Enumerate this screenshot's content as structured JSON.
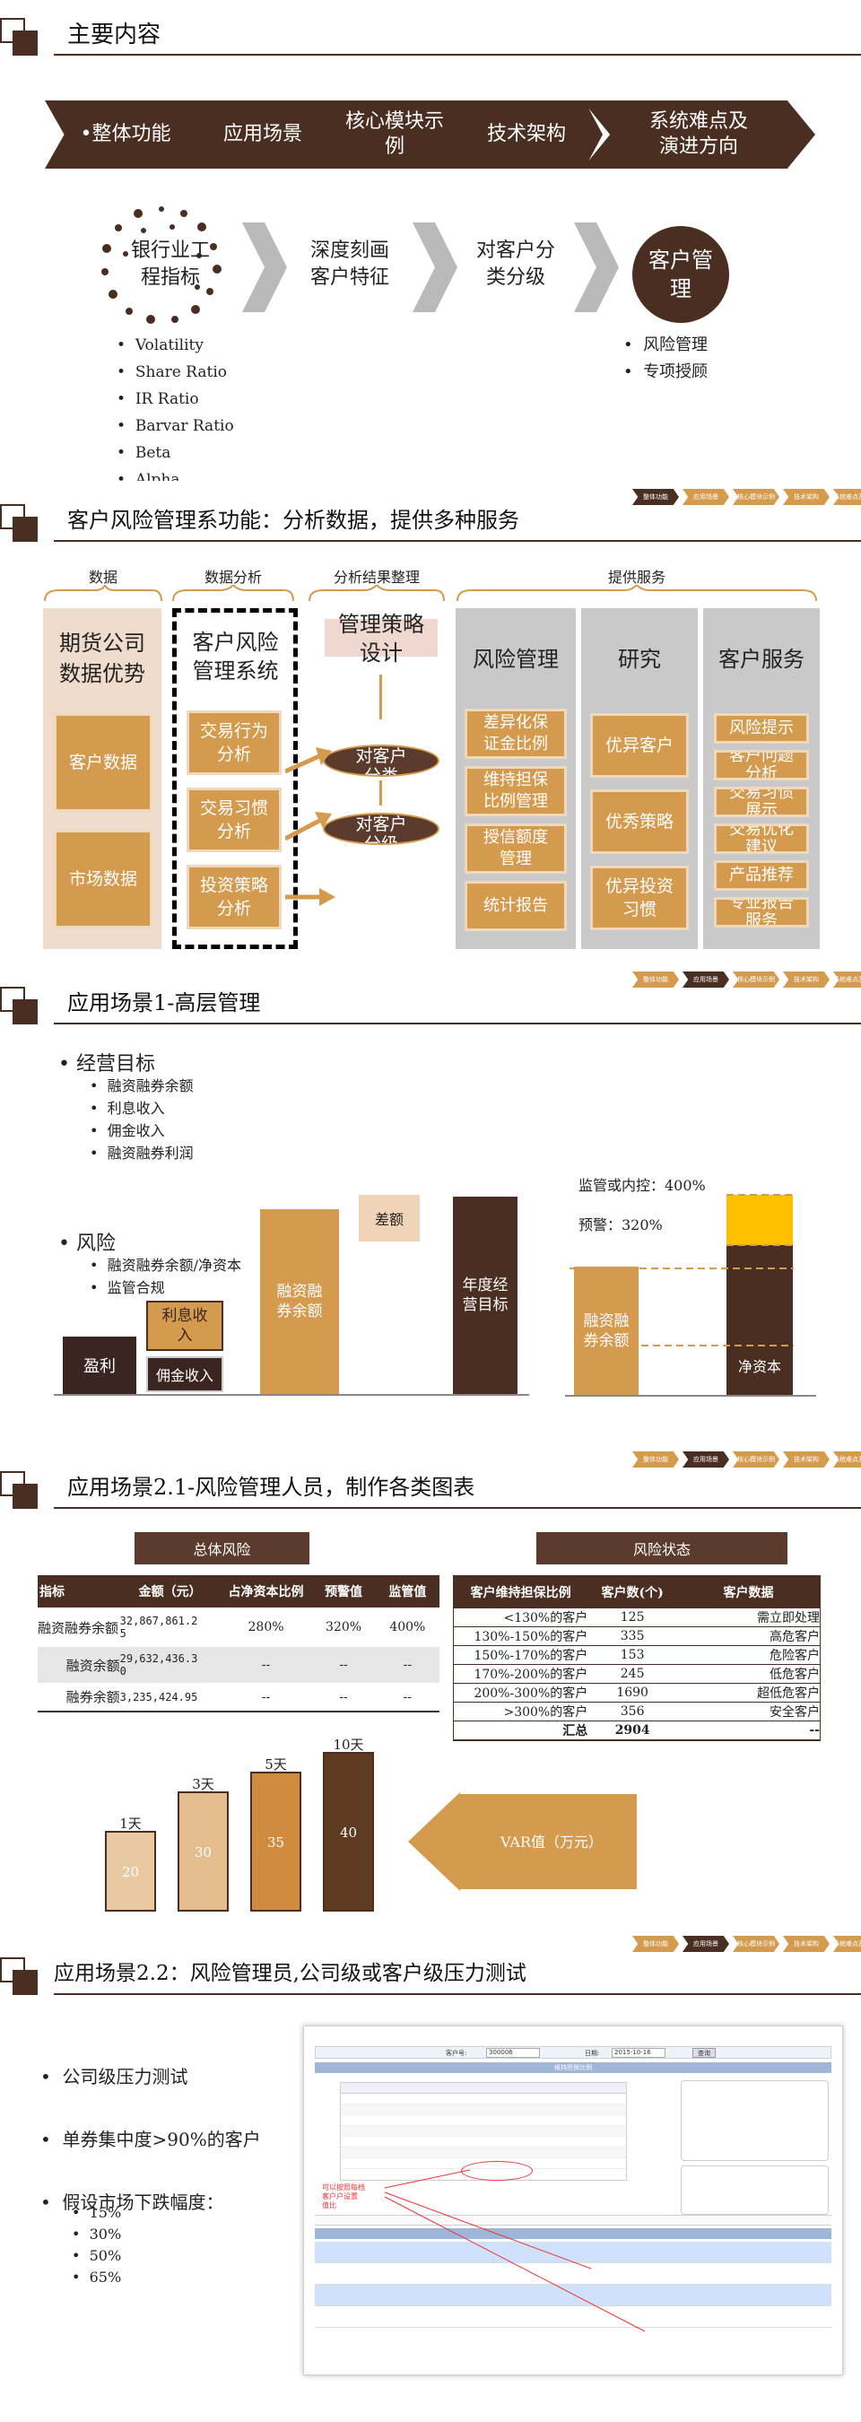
{
  "section1": {
    "title": "主要内容",
    "chevrons": [
      "•整体功能",
      "应用场景",
      "核心模块示\n例",
      "技术架构",
      "系统难点及\n演进方向"
    ],
    "flow": [
      "银行业工\n程指标",
      "深度刻画\n客户特征",
      "对客户分\n类分级",
      "客户管\n理"
    ],
    "left_bullets": [
      "Volatility",
      "Share Ratio",
      "IR Ratio",
      "Barvar Ratio",
      "Beta",
      "Alpha"
    ],
    "right_bullets": [
      "风险管理",
      "专项授顾"
    ]
  },
  "nav": [
    "整体功能",
    "应用场景",
    "核心模块示例",
    "技术架构",
    "系统难点及演进方向"
  ],
  "section2": {
    "title": "客户风险管理系功能：分析数据，提供多种服务",
    "headers": [
      "数据",
      "数据分析",
      "分析结果整理",
      "提供服务"
    ],
    "col1_title": "期货公司\n数据优势",
    "col1_items": [
      "客户数据",
      "市场数据"
    ],
    "col2_title": "客户风险\n管理系统",
    "col2_items": [
      "交易行为\n分析",
      "交易习惯\n分析",
      "投资策略\n分析"
    ],
    "col3_title": "管理策略\n设计",
    "col3_items": [
      "对客户\n分类",
      "对客户\n分级"
    ],
    "svc_risk_title": "风险管理",
    "svc_risk": [
      "差异化保\n证金比例",
      "维持担保\n比例管理",
      "授信额度\n管理",
      "统计报告"
    ],
    "svc_research_title": "研究",
    "svc_research": [
      "优异客户",
      "优秀策略",
      "优异投资\n习惯"
    ],
    "svc_cs_title": "客户服务",
    "svc_cs": [
      "风险提示",
      "客户问题\n分析",
      "交易习惯\n展示",
      "交易优化\n建议",
      "产品推荐",
      "专业报告\n服务"
    ]
  },
  "section3": {
    "title": "应用场景1-高层管理",
    "goal": "经营目标",
    "goal_items": [
      "融资融券余额",
      "利息收入",
      "佣金收入",
      "融资融券利润"
    ],
    "risk": "风险",
    "risk_items": [
      "融资融券余额/净资本",
      "监管合规"
    ],
    "bars": {
      "profit": "盈利",
      "interest": "利息收\n入",
      "commission": "佣金收入",
      "balance": "融资融\n券余额",
      "gap": "差额",
      "target": "年度经\n营目标"
    },
    "reg_label": "监管或内控：400%",
    "warn_label": "预警：320%",
    "right_bal": "融资融\n券余额",
    "net_cap": "净资本"
  },
  "section4": {
    "title": "应用场景2.1-风险管理人员，制作各类图表",
    "overall": "总体风险",
    "status": "风险状态",
    "t1_headers": [
      "指标",
      "金额（元）",
      "占净资本比例",
      "预警值",
      "监管值"
    ],
    "t1_rows": [
      [
        "融资融券余额",
        "32,867,861.2\n5",
        "280%",
        "320%",
        "400%"
      ],
      [
        "融资余额",
        "29,632,436.3\n0",
        "--",
        "--",
        "--"
      ],
      [
        "融券余额",
        "3,235,424.95",
        "--",
        "--",
        "--"
      ]
    ],
    "t2_headers": [
      "客户维持担保比例",
      "客户数(个)",
      "客户数据"
    ],
    "t2_rows": [
      [
        "<130%的客户",
        "125",
        "需立即处理"
      ],
      [
        "130%-150%的客户",
        "335",
        "高危客户"
      ],
      [
        "150%-170%的客户",
        "153",
        "危险客户"
      ],
      [
        "170%-200%的客户",
        "245",
        "低危客户"
      ],
      [
        "200%-300%的客户",
        "1690",
        "超低危客户"
      ],
      [
        ">300%的客户",
        "356",
        "安全客户"
      ],
      [
        "汇总",
        "2904",
        "--"
      ]
    ],
    "var_label": "VAR值（万元）"
  },
  "chart_data": {
    "type": "bar",
    "categories": [
      "1天",
      "3天",
      "5天",
      "10天"
    ],
    "values": [
      20,
      30,
      35,
      40
    ],
    "title": "",
    "xlabel": "",
    "ylabel": "",
    "colors": [
      "#e9c9a2",
      "#e3bd8e",
      "#cf8b3e",
      "#5e3b21"
    ]
  },
  "section5": {
    "title": "应用场景2.2：风险管理员,公司级或客户级压力测试",
    "bullets": [
      "公司级压力测试",
      "单券集中度>90%的客户",
      "假设市场下跌幅度："
    ],
    "sub": [
      "15%",
      "30%",
      "50%",
      "65%"
    ],
    "shot_top": [
      "客户号:",
      "300006",
      "日期:",
      "2015-10-16",
      "查询"
    ],
    "shot_title": "维持担保比例",
    "note": "可以按照每档\n客户户设置\n值比"
  }
}
